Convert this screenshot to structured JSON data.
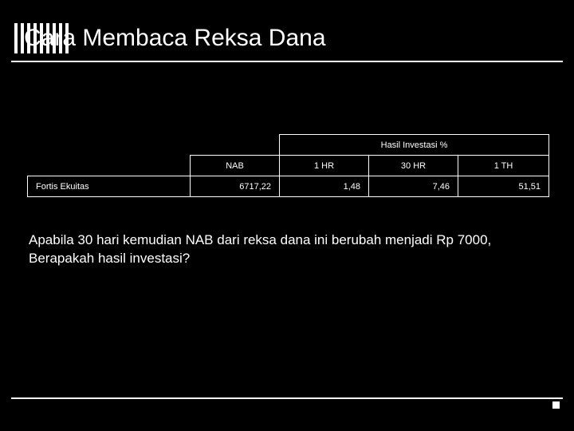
{
  "slide": {
    "title": "Cara Membaca Reksa Dana",
    "table": {
      "hasil_header": "Hasil Investasi %",
      "columns": {
        "nab": "NAB",
        "hr1": "1 HR",
        "hr30": "30 HR",
        "th1": "1 TH"
      },
      "row": {
        "label": "Fortis Ekuitas",
        "nab": "6717,22",
        "hr1": "1,48",
        "hr30": "7,46",
        "th1": "51,51"
      }
    },
    "body": "Apabila 30 hari kemudian NAB dari reksa dana ini berubah menjadi Rp 7000, Berapakah hasil investasi?",
    "colors": {
      "background": "#000000",
      "text": "#ffffff",
      "border": "#ffffff"
    },
    "typography": {
      "title_fontsize": 30,
      "table_fontsize": 11,
      "body_fontsize": 17
    },
    "stripes_count": 9
  }
}
